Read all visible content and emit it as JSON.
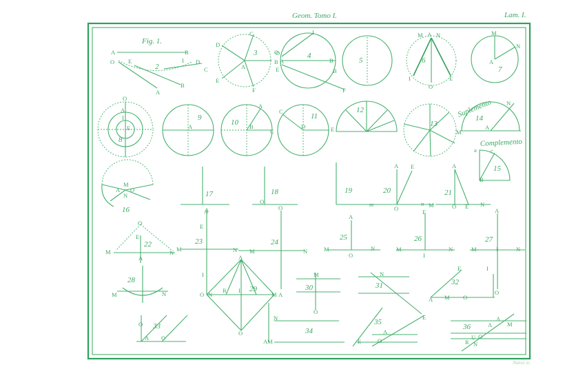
{
  "header": {
    "center": "Geom. Tomo I.",
    "right": "Lam. I."
  },
  "footer": {
    "engraver": "Nunez sc."
  },
  "colors": {
    "ink": "#45b06d",
    "frame": "#2ea15a",
    "paper": "#ffffff"
  },
  "figure_numbers": [
    "Fig. 1.",
    "2",
    "3",
    "4",
    "5",
    "6",
    "7",
    "8",
    "9",
    "10",
    "11",
    "12",
    "13",
    "14",
    "15",
    "16",
    "17",
    "18",
    "19",
    "20",
    "21",
    "22",
    "23",
    "24",
    "25",
    "26",
    "27",
    "28",
    "29",
    "30",
    "31",
    "32",
    "33",
    "34",
    "35",
    "36"
  ],
  "captions": {
    "suplemento": "Suplemento",
    "complemento": "Complemento"
  },
  "point_labels": {
    "f1": [
      "A",
      "B",
      "O",
      "E",
      "I",
      "D",
      "C",
      "B",
      "A"
    ],
    "f3": [
      "C",
      "D",
      "O",
      "A",
      "B",
      "E",
      "F"
    ],
    "f4": [
      "I",
      "O",
      "A",
      "B",
      "E",
      "B",
      "F"
    ],
    "f6": [
      "M",
      "A",
      "N",
      "I",
      "E",
      "O"
    ],
    "f7": [
      "M",
      "N",
      "A"
    ],
    "f8": [
      "O",
      "A",
      "I",
      "E"
    ],
    "f9": [
      "A"
    ],
    "f10": [
      "A",
      "B",
      "C"
    ],
    "f11": [
      "C",
      "D",
      "E"
    ],
    "f14": [
      "N",
      "A",
      "M"
    ],
    "f15": [
      "a",
      "c",
      "B"
    ],
    "f16": [
      "M",
      "A",
      "O",
      "N"
    ],
    "f17": [
      "A"
    ],
    "f18": [
      "O"
    ],
    "f20": [
      "A",
      "E",
      "O"
    ],
    "f21": [
      "A",
      "O",
      "E"
    ],
    "f19": [
      "m",
      "n",
      "M",
      "N"
    ],
    "f22": [
      "O",
      "E",
      "A",
      "M",
      "N"
    ],
    "f23": [
      "A",
      "E",
      "M"
    ],
    "f24": [
      "N",
      "O",
      "M",
      "N"
    ],
    "f25": [
      "A",
      "M",
      "O",
      "N"
    ],
    "f26": [
      "E",
      "M",
      "I",
      "N"
    ],
    "f27": [
      "A",
      "M",
      "I",
      "N"
    ],
    "f28": [
      "M",
      "N"
    ],
    "f29": [
      "A",
      "I",
      "O",
      "N",
      "R",
      "I",
      "M",
      "A",
      "O"
    ],
    "f30": [
      "M",
      "O"
    ],
    "f31": [
      "N",
      "E"
    ],
    "f32": [
      "E",
      "I",
      "A",
      "M",
      "O",
      "O"
    ],
    "f33": [
      "O",
      "A",
      "O"
    ],
    "f34": [
      "N",
      "AM"
    ],
    "f35": [
      "A",
      "E",
      "O"
    ],
    "f36": [
      "A",
      "M",
      "A",
      "R",
      "U",
      "O",
      "N"
    ]
  }
}
